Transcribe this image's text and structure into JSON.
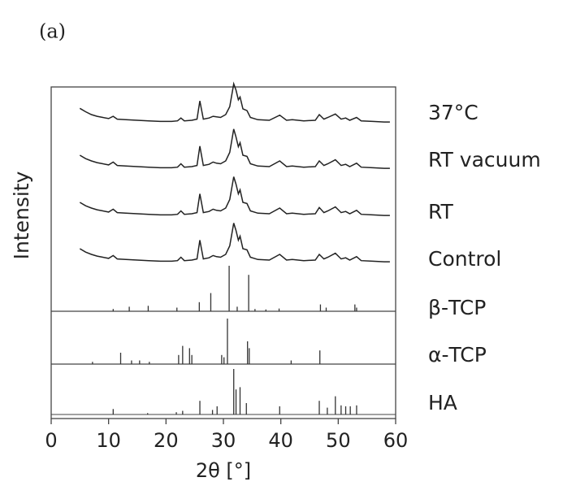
{
  "chart_data": {
    "type": "xrd",
    "title": "(a)",
    "xlabel": "2θ [°]",
    "ylabel": "Intensity",
    "xlim": [
      0,
      60
    ],
    "xticks": [
      0,
      10,
      20,
      30,
      40,
      50,
      60
    ],
    "x": [
      5,
      6,
      7,
      8,
      9,
      10,
      10.8,
      11.5,
      13,
      15,
      17,
      19,
      21,
      22,
      22.6,
      23.2,
      24.5,
      25.4,
      25.9,
      26.5,
      27.5,
      28.2,
      28.8,
      29.5,
      30.4,
      31.1,
      31.8,
      32.2,
      32.6,
      32.9,
      33.4,
      34.1,
      34.7,
      36,
      38,
      39.8,
      41,
      42,
      44,
      46,
      46.7,
      47.5,
      48.2,
      49.5,
      50.5,
      51.3,
      52,
      53.2,
      54,
      56,
      58,
      59
    ],
    "series": [
      {
        "name": "37°C",
        "color": "#222222",
        "values": [
          31,
          25,
          20,
          17,
          15,
          13,
          17,
          12,
          11,
          10,
          9,
          8,
          8,
          9,
          14,
          9,
          10,
          12,
          44,
          12,
          14,
          17,
          16,
          15,
          20,
          34,
          74,
          63,
          46,
          51,
          30,
          27,
          15,
          11,
          10,
          19,
          10,
          11,
          9,
          10,
          20,
          12,
          15,
          21,
          12,
          14,
          10,
          15,
          9,
          8,
          7,
          7
        ]
      },
      {
        "name": "RT vacuum",
        "color": "#222222",
        "values": [
          30,
          24,
          20,
          17,
          15,
          13,
          18,
          12,
          11,
          10,
          9,
          8,
          8,
          9,
          15,
          9,
          10,
          12,
          46,
          12,
          14,
          18,
          16,
          15,
          20,
          35,
          76,
          62,
          45,
          52,
          30,
          28,
          15,
          11,
          10,
          20,
          10,
          11,
          9,
          10,
          20,
          12,
          15,
          22,
          12,
          14,
          10,
          16,
          9,
          8,
          7,
          7
        ]
      },
      {
        "name": "RT",
        "color": "#222222",
        "values": [
          30,
          24,
          20,
          17,
          15,
          13,
          18,
          12,
          11,
          10,
          9,
          8,
          8,
          9,
          15,
          9,
          10,
          12,
          45,
          12,
          14,
          18,
          16,
          15,
          20,
          35,
          75,
          62,
          45,
          52,
          30,
          28,
          15,
          11,
          10,
          20,
          10,
          11,
          9,
          10,
          21,
          12,
          15,
          22,
          12,
          14,
          10,
          16,
          9,
          8,
          7,
          7
        ]
      },
      {
        "name": "Control",
        "color": "#222222",
        "values": [
          30,
          24,
          20,
          17,
          15,
          13,
          18,
          12,
          11,
          10,
          9,
          8,
          8,
          9,
          15,
          9,
          10,
          12,
          45,
          12,
          14,
          18,
          16,
          15,
          20,
          35,
          75,
          62,
          45,
          52,
          30,
          28,
          15,
          11,
          10,
          20,
          10,
          11,
          9,
          10,
          20,
          12,
          15,
          22,
          12,
          14,
          10,
          16,
          9,
          8,
          7,
          7
        ]
      }
    ],
    "references": [
      {
        "name": "β-TCP",
        "color": "#333333",
        "positions": [
          10.8,
          13.6,
          16.9,
          21.9,
          25.8,
          27.8,
          31.0,
          32.4,
          34.4,
          35.5,
          37.4,
          39.7,
          46.9,
          47.9,
          52.9,
          53.2
        ],
        "intensities": [
          5,
          10,
          12,
          8,
          20,
          40,
          100,
          10,
          80,
          5,
          4,
          6,
          15,
          8,
          15,
          8
        ]
      },
      {
        "name": "α-TCP",
        "color": "#333333",
        "positions": [
          7.2,
          12.1,
          14.0,
          15.4,
          17.1,
          22.2,
          22.9,
          24.1,
          24.5,
          29.7,
          30.1,
          30.7,
          34.2,
          34.5,
          41.8,
          46.8
        ],
        "intensities": [
          5,
          25,
          8,
          8,
          5,
          20,
          40,
          35,
          20,
          20,
          15,
          100,
          50,
          35,
          8,
          30
        ]
      },
      {
        "name": "HA",
        "color": "#333333",
        "positions": [
          10.8,
          16.8,
          21.8,
          22.9,
          25.9,
          28.1,
          28.9,
          31.8,
          32.2,
          32.9,
          34.0,
          39.8,
          46.7,
          48.1,
          49.5,
          50.5,
          51.3,
          52.1,
          53.2
        ],
        "intensities": [
          12,
          3,
          5,
          8,
          30,
          10,
          18,
          100,
          55,
          60,
          25,
          18,
          30,
          15,
          40,
          20,
          18,
          18,
          20
        ]
      }
    ]
  }
}
